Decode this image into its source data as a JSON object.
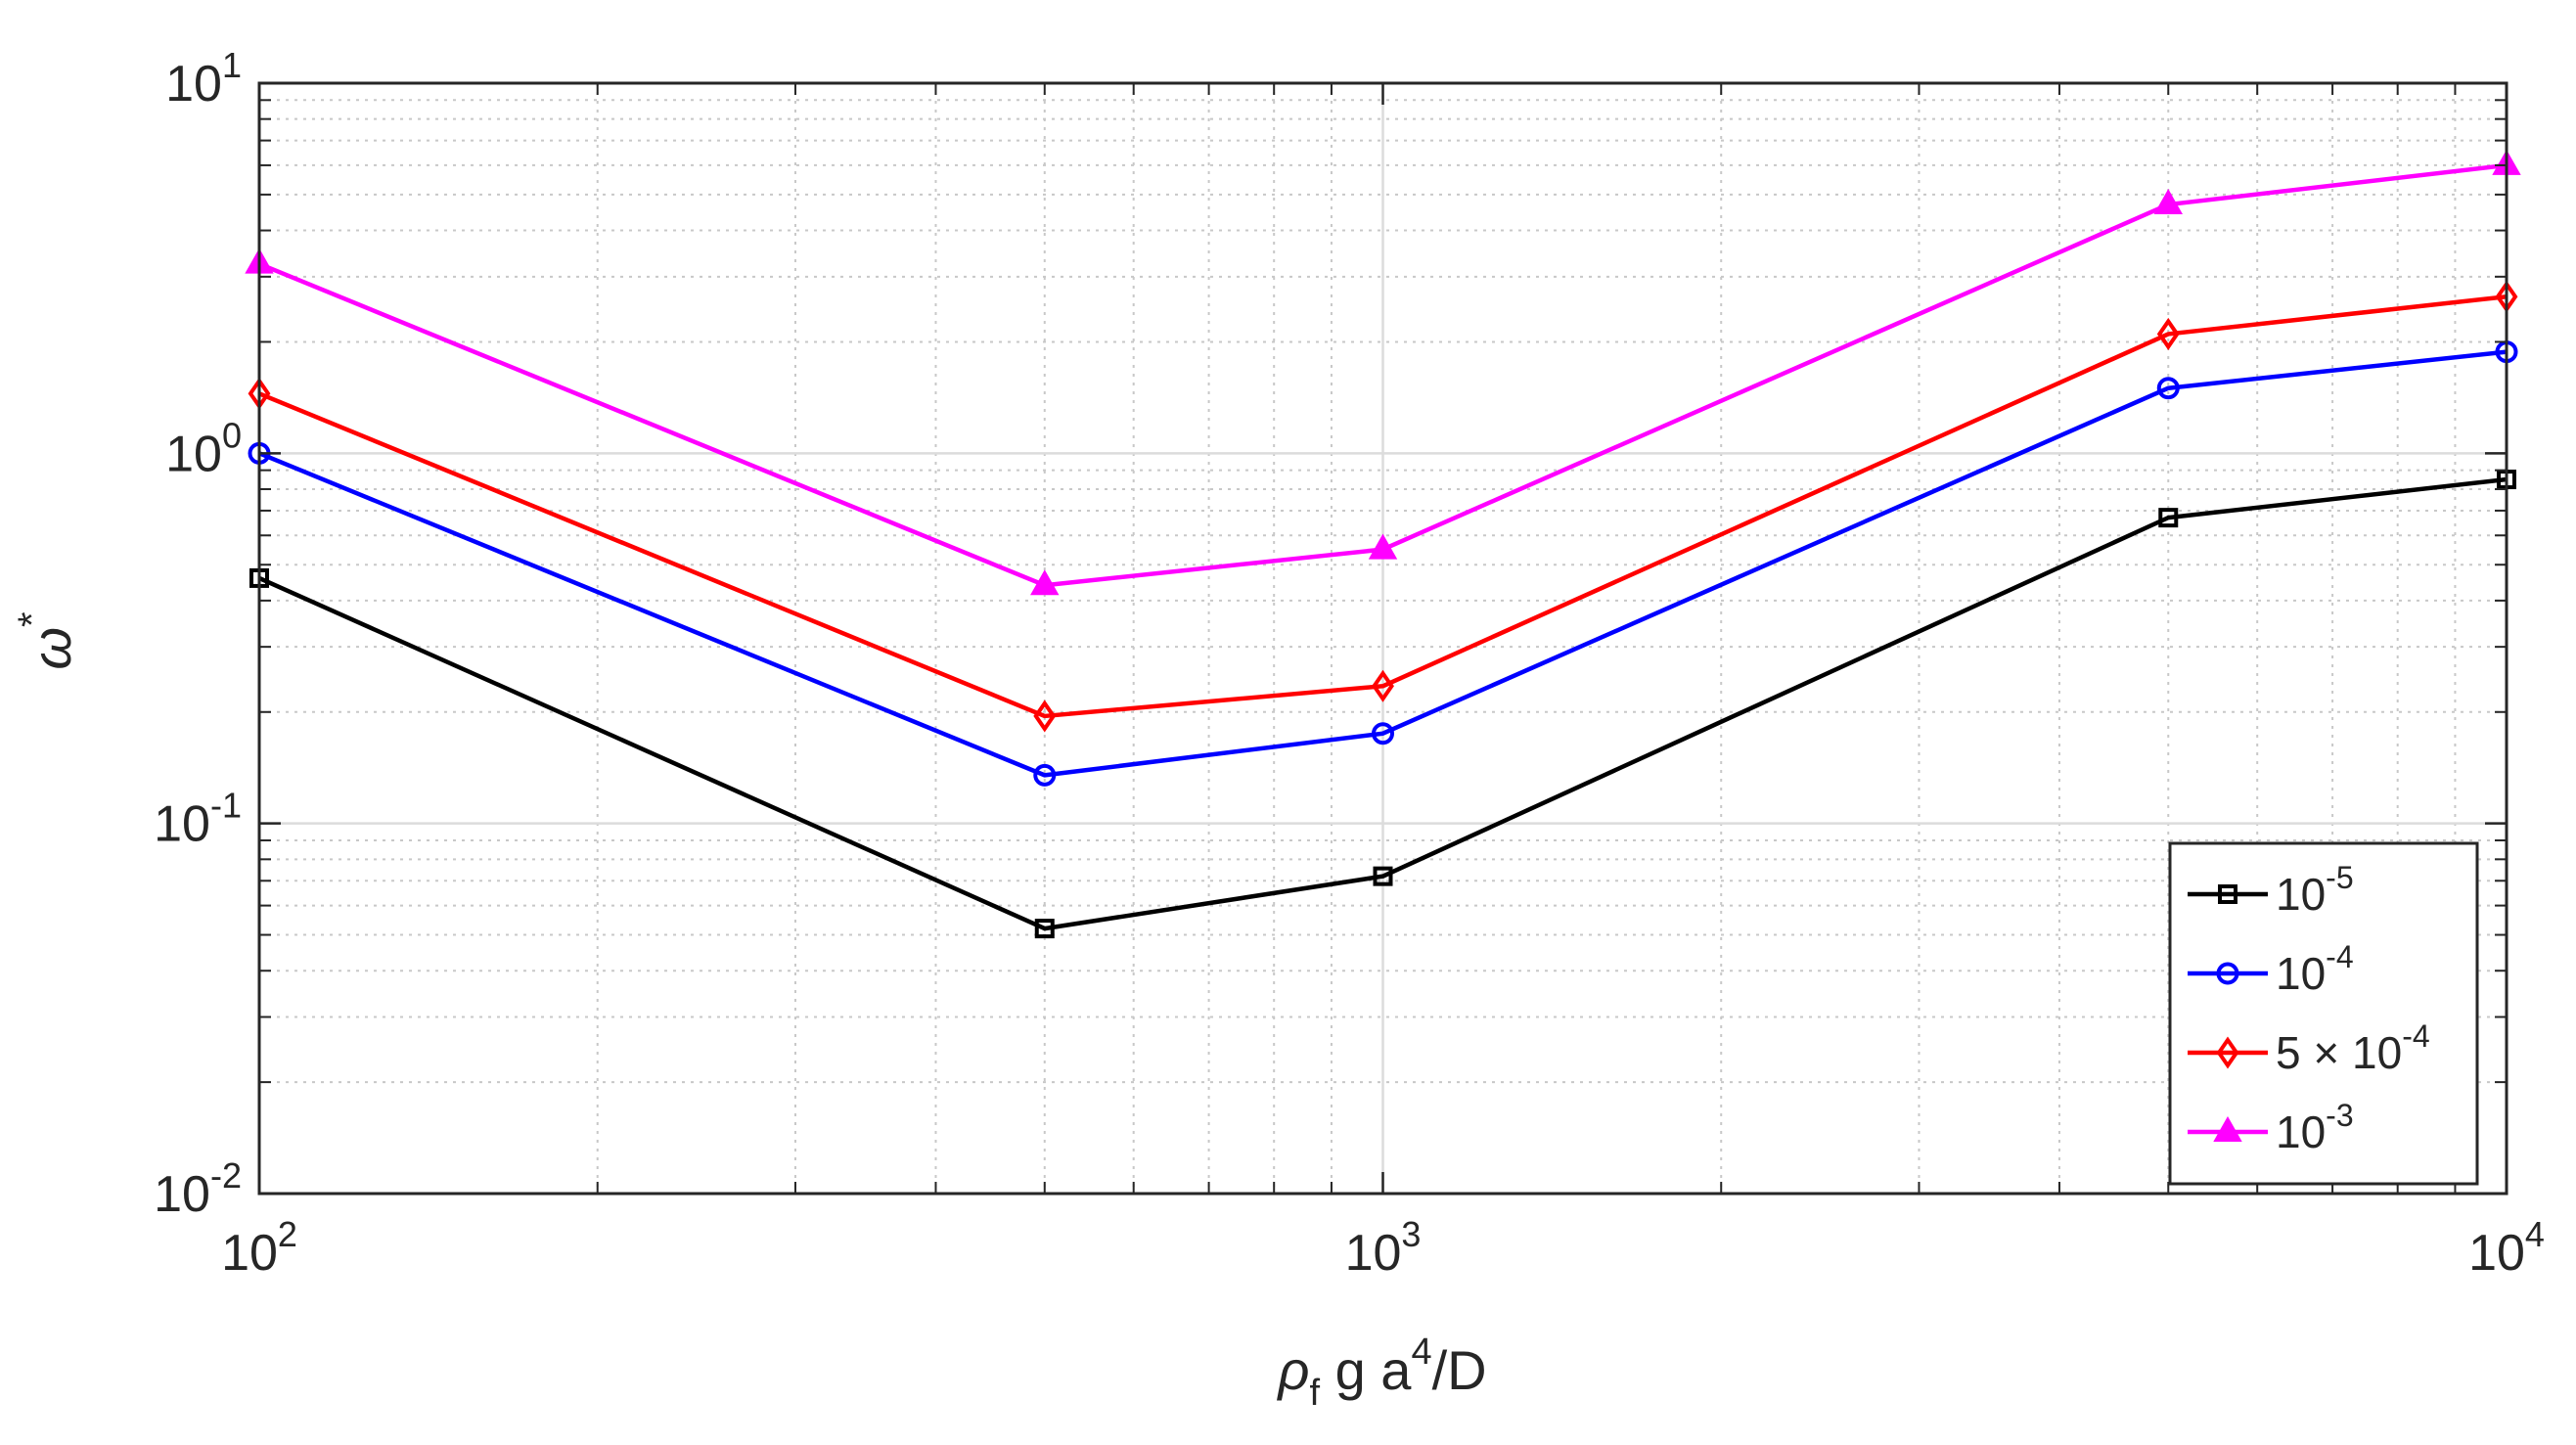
{
  "chart_data": {
    "type": "line",
    "title": "",
    "xscale": "log",
    "yscale": "log",
    "xlim": [
      100,
      10000
    ],
    "ylim": [
      0.01,
      10
    ],
    "grid": true,
    "minor_grid": true,
    "xlabel": {
      "base": "ρ",
      "sub": "f",
      "mid": " g a",
      "sup": "4",
      "tail": "/D"
    },
    "ylabel": {
      "base": "ω",
      "sup": "*"
    },
    "xticks": [
      {
        "value": 100,
        "base": "10",
        "exp": "2"
      },
      {
        "value": 1000,
        "base": "10",
        "exp": "3"
      },
      {
        "value": 10000,
        "base": "10",
        "exp": "4"
      }
    ],
    "yticks": [
      {
        "value": 0.01,
        "base": "10",
        "exp": "-2"
      },
      {
        "value": 0.1,
        "base": "10",
        "exp": "-1"
      },
      {
        "value": 1,
        "base": "10",
        "exp": "0"
      },
      {
        "value": 10,
        "base": "10",
        "exp": "1"
      }
    ],
    "x": [
      100,
      500,
      1000,
      5000,
      10000
    ],
    "legend_position": "bottom-right",
    "series": [
      {
        "name": "10^-5",
        "label_base": "10",
        "label_exp": "-5",
        "label_suffix": "",
        "color": "#000000",
        "marker": "square",
        "values": [
          0.46,
          0.052,
          0.072,
          0.67,
          0.85
        ]
      },
      {
        "name": "10^-4",
        "label_base": "10",
        "label_exp": "-4",
        "label_suffix": "",
        "color": "#0000ff",
        "marker": "circle",
        "values": [
          1.0,
          0.135,
          0.175,
          1.5,
          1.88
        ]
      },
      {
        "name": "5 × 10^-4",
        "label_base": "5 × 10",
        "label_exp": "-4",
        "label_suffix": "",
        "color": "#ff0000",
        "marker": "diamond",
        "values": [
          1.45,
          0.195,
          0.235,
          2.1,
          2.65
        ]
      },
      {
        "name": "10^-3",
        "label_base": "10",
        "label_exp": "-3",
        "label_suffix": "",
        "color": "#ff00ff",
        "marker": "triangle",
        "values": [
          3.25,
          0.44,
          0.55,
          4.7,
          6.0
        ]
      }
    ]
  }
}
